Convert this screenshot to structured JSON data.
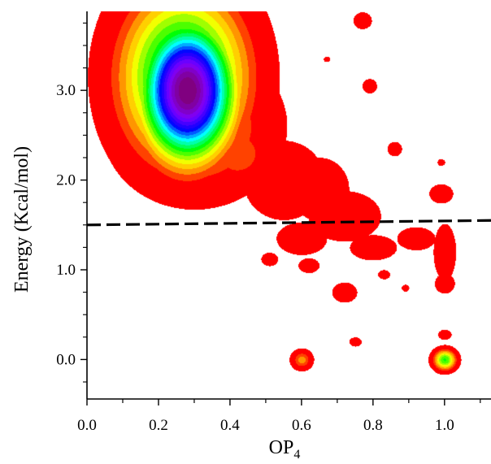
{
  "chart_data": {
    "type": "heatmap",
    "xlabel": "OP",
    "xlabel_subscript": "4",
    "ylabel": "Energy (Kcal/mol)",
    "xlim": [
      0.0,
      1.13
    ],
    "ylim": [
      -0.44,
      3.88
    ],
    "x_ticks": [
      "0.0",
      "0.2",
      "0.4",
      "0.6",
      "0.8",
      "1.0"
    ],
    "x_tick_values": [
      0.0,
      0.2,
      0.4,
      0.6,
      0.8,
      1.0
    ],
    "y_ticks": [
      "0.0",
      "1.0",
      "2.0",
      "3.0"
    ],
    "y_tick_values": [
      0.0,
      1.0,
      2.0,
      3.0
    ],
    "colormap": [
      "#ff0000",
      "#ff8000",
      "#ffff00",
      "#00ff00",
      "#00ffff",
      "#0000ff",
      "#8000ff",
      "#800080"
    ],
    "threshold_line": {
      "y": 1.5,
      "y_end": 1.55,
      "style": "dashed",
      "color": "#000000"
    },
    "density_blobs": [
      {
        "x": 0.28,
        "y": 3.0,
        "sx": 0.085,
        "sy": 0.5,
        "level": 1.0
      },
      {
        "x": 0.27,
        "y": 3.15,
        "sx": 0.12,
        "sy": 0.65,
        "level": 0.55
      },
      {
        "x": 0.3,
        "y": 2.6,
        "sx": 0.14,
        "sy": 0.5,
        "level": 0.25
      },
      {
        "x": 0.2,
        "y": 2.5,
        "sx": 0.08,
        "sy": 0.35,
        "level": 0.2
      },
      {
        "x": 0.42,
        "y": 2.3,
        "sx": 0.08,
        "sy": 0.3,
        "level": 0.16
      },
      {
        "x": 0.55,
        "y": 2.0,
        "sx": 0.09,
        "sy": 0.35,
        "level": 0.1
      },
      {
        "x": 0.65,
        "y": 1.9,
        "sx": 0.07,
        "sy": 0.3,
        "level": 0.09
      },
      {
        "x": 0.72,
        "y": 1.6,
        "sx": 0.09,
        "sy": 0.25,
        "level": 0.085
      },
      {
        "x": 0.6,
        "y": 1.35,
        "sx": 0.07,
        "sy": 0.18,
        "level": 0.075
      },
      {
        "x": 0.8,
        "y": 1.25,
        "sx": 0.07,
        "sy": 0.15,
        "level": 0.07
      },
      {
        "x": 0.92,
        "y": 1.35,
        "sx": 0.05,
        "sy": 0.12,
        "level": 0.08
      },
      {
        "x": 1.0,
        "y": 1.2,
        "sx": 0.025,
        "sy": 0.25,
        "level": 0.1
      },
      {
        "x": 1.0,
        "y": 0.85,
        "sx": 0.02,
        "sy": 0.08,
        "level": 0.12
      },
      {
        "x": 0.99,
        "y": 1.85,
        "sx": 0.025,
        "sy": 0.08,
        "level": 0.11
      },
      {
        "x": 0.72,
        "y": 0.75,
        "sx": 0.025,
        "sy": 0.08,
        "level": 0.12
      },
      {
        "x": 0.62,
        "y": 1.05,
        "sx": 0.025,
        "sy": 0.07,
        "level": 0.09
      },
      {
        "x": 0.51,
        "y": 1.12,
        "sx": 0.022,
        "sy": 0.07,
        "level": 0.08
      },
      {
        "x": 0.77,
        "y": 3.78,
        "sx": 0.022,
        "sy": 0.08,
        "level": 0.09
      },
      {
        "x": 0.67,
        "y": 3.35,
        "sx": 0.012,
        "sy": 0.04,
        "level": 0.06
      },
      {
        "x": 0.79,
        "y": 3.05,
        "sx": 0.02,
        "sy": 0.08,
        "level": 0.075
      },
      {
        "x": 0.86,
        "y": 2.35,
        "sx": 0.02,
        "sy": 0.08,
        "level": 0.075
      },
      {
        "x": 0.83,
        "y": 0.95,
        "sx": 0.02,
        "sy": 0.06,
        "level": 0.065
      },
      {
        "x": 0.75,
        "y": 0.2,
        "sx": 0.02,
        "sy": 0.06,
        "level": 0.065
      },
      {
        "x": 0.89,
        "y": 0.8,
        "sx": 0.014,
        "sy": 0.05,
        "level": 0.06
      },
      {
        "x": 0.99,
        "y": 2.2,
        "sx": 0.014,
        "sy": 0.05,
        "level": 0.06
      },
      {
        "x": 1.0,
        "y": 0.28,
        "sx": 0.02,
        "sy": 0.06,
        "level": 0.07
      },
      {
        "x": 0.6,
        "y": 0.0,
        "sx": 0.02,
        "sy": 0.075,
        "level": 0.2
      },
      {
        "x": 1.0,
        "y": 0.0,
        "sx": 0.022,
        "sy": 0.08,
        "level": 0.4
      }
    ]
  }
}
